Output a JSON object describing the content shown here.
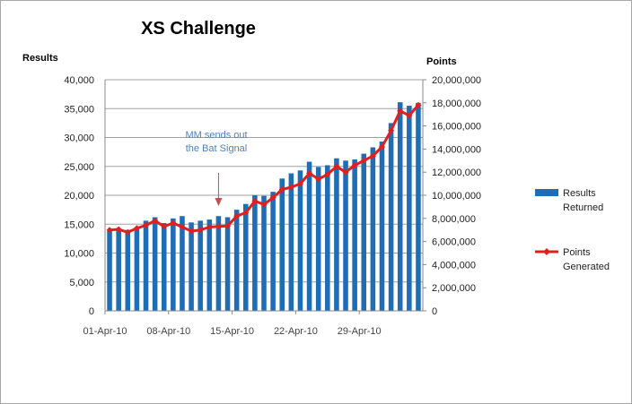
{
  "chart_data": {
    "type": "bar",
    "title": "XS Challenge",
    "ylabel_left": "Results",
    "ylabel_right": "Points",
    "ylim_left": [
      0,
      40000
    ],
    "ylim_right": [
      0,
      20000000
    ],
    "yticks_left": [
      "0",
      "5,000",
      "10,000",
      "15,000",
      "20,000",
      "25,000",
      "30,000",
      "35,000",
      "40,000"
    ],
    "yticks_right": [
      "0",
      "2,000,000",
      "4,000,000",
      "6,000,000",
      "8,000,000",
      "10,000,000",
      "12,000,000",
      "14,000,000",
      "16,000,000",
      "18,000,000",
      "20,000,000"
    ],
    "x_tick_labels": [
      "01-Apr-10",
      "08-Apr-10",
      "15-Apr-10",
      "22-Apr-10",
      "29-Apr-10"
    ],
    "grid": true,
    "legend_position": "right",
    "categories": [
      "01-Apr-10",
      "02-Apr-10",
      "03-Apr-10",
      "04-Apr-10",
      "05-Apr-10",
      "06-Apr-10",
      "07-Apr-10",
      "08-Apr-10",
      "09-Apr-10",
      "10-Apr-10",
      "11-Apr-10",
      "12-Apr-10",
      "13-Apr-10",
      "14-Apr-10",
      "15-Apr-10",
      "16-Apr-10",
      "17-Apr-10",
      "18-Apr-10",
      "19-Apr-10",
      "20-Apr-10",
      "21-Apr-10",
      "22-Apr-10",
      "23-Apr-10",
      "24-Apr-10",
      "25-Apr-10",
      "26-Apr-10",
      "27-Apr-10",
      "28-Apr-10",
      "29-Apr-10",
      "30-Apr-10",
      "01-May-10",
      "02-May-10",
      "03-May-10",
      "04-May-10",
      "05-May-10"
    ],
    "series": [
      {
        "name": "Results Returned",
        "type": "bar",
        "axis": "left",
        "color": "#1f6eb5",
        "values": [
          13800,
          14300,
          14000,
          14100,
          15600,
          16200,
          15200,
          16000,
          16400,
          15300,
          15600,
          15800,
          16400,
          16200,
          17500,
          18500,
          20000,
          19900,
          20600,
          22900,
          23800,
          24300,
          25800,
          24900,
          25200,
          26400,
          26000,
          26200,
          27200,
          28300,
          29300,
          32500,
          36100,
          35500,
          36000
        ]
      },
      {
        "name": "Points Generated",
        "type": "line",
        "axis": "right",
        "color": "#e02020",
        "values": [
          7000000,
          7050000,
          6800000,
          7150000,
          7400000,
          7800000,
          7300000,
          7600000,
          7250000,
          6900000,
          7000000,
          7250000,
          7300000,
          7350000,
          8200000,
          8500000,
          9500000,
          9200000,
          9800000,
          10500000,
          10700000,
          11000000,
          11900000,
          11400000,
          11800000,
          12500000,
          12000000,
          12600000,
          13000000,
          13400000,
          14200000,
          15600000,
          17300000,
          16900000,
          17800000
        ]
      }
    ],
    "annotation": {
      "lines": [
        "MM sends out",
        "the Bat Signal"
      ],
      "target": "13-Apr-10",
      "color": "#c0504d"
    }
  }
}
